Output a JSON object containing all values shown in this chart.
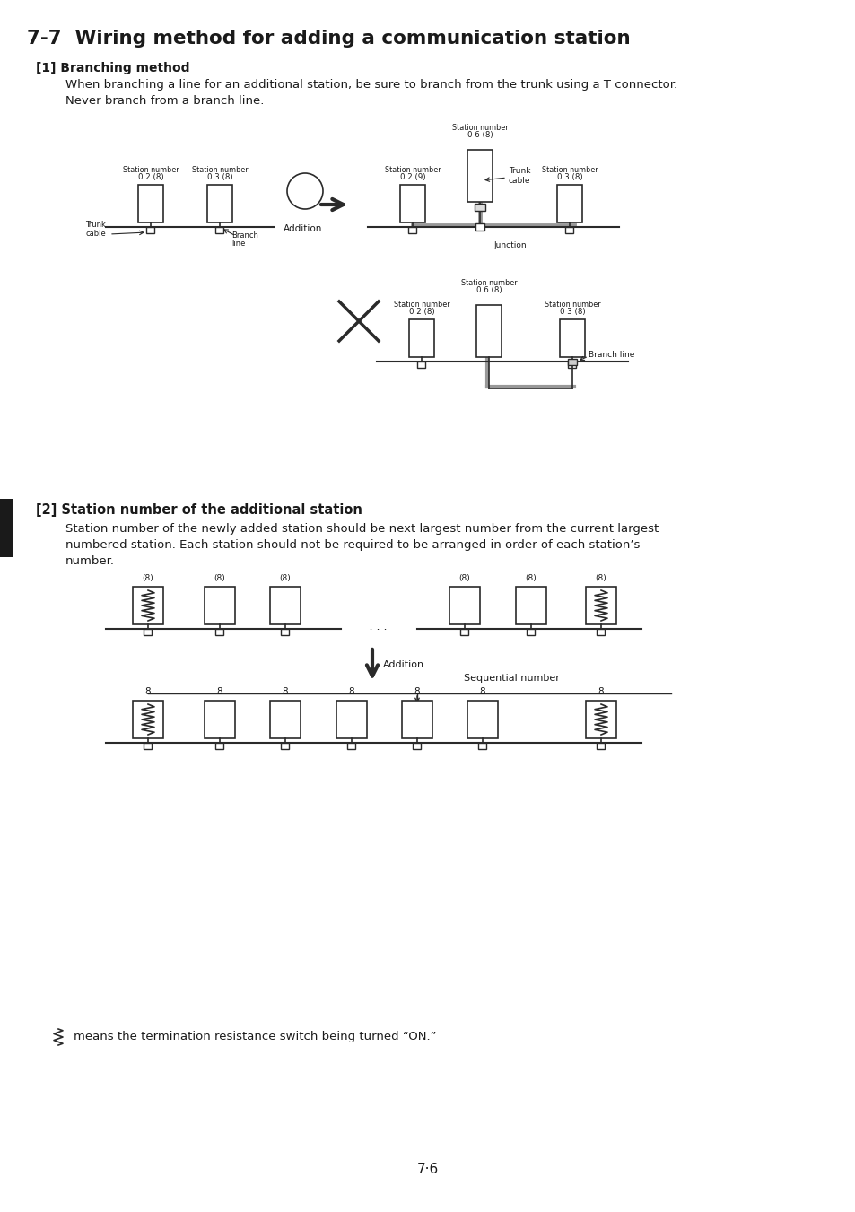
{
  "title": "7-7  Wiring method for adding a communication station",
  "section1_header": "[1] Branching method",
  "section1_text1": "When branching a line for an additional station, be sure to branch from the trunk using a T connector.",
  "section1_text2": "Never branch from a branch line.",
  "section2_header": "[2] Station number of the additional station",
  "section2_text1": "Station number of the newly added station should be next largest number from the current largest",
  "section2_text2": "numbered station. Each station should not be required to be arranged in order of each station’s",
  "section2_text3": "number.",
  "footnote": "means the termination resistance switch being turned “ON.”",
  "page_number": "7·6",
  "bg_color": "#ffffff",
  "text_color": "#1a1a1a",
  "line_color": "#2a2a2a",
  "gray_line_color": "#999999"
}
